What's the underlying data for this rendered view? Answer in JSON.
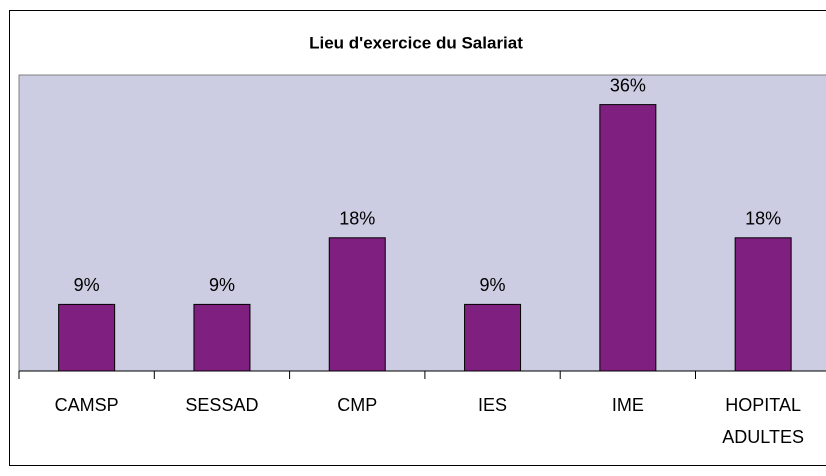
{
  "chart_data": {
    "type": "bar",
    "title": "Lieu d'exercice du Salariat",
    "categories": [
      "CAMSP",
      "SESSAD",
      "CMP",
      "IES",
      "IME",
      "HOPITAL ADULTES"
    ],
    "values": [
      9,
      9,
      18,
      9,
      36,
      18
    ],
    "value_labels": [
      "9%",
      "9%",
      "18%",
      "9%",
      "36%",
      "18%"
    ],
    "color": "#7f1f7f",
    "ylim": [
      0,
      40
    ]
  }
}
